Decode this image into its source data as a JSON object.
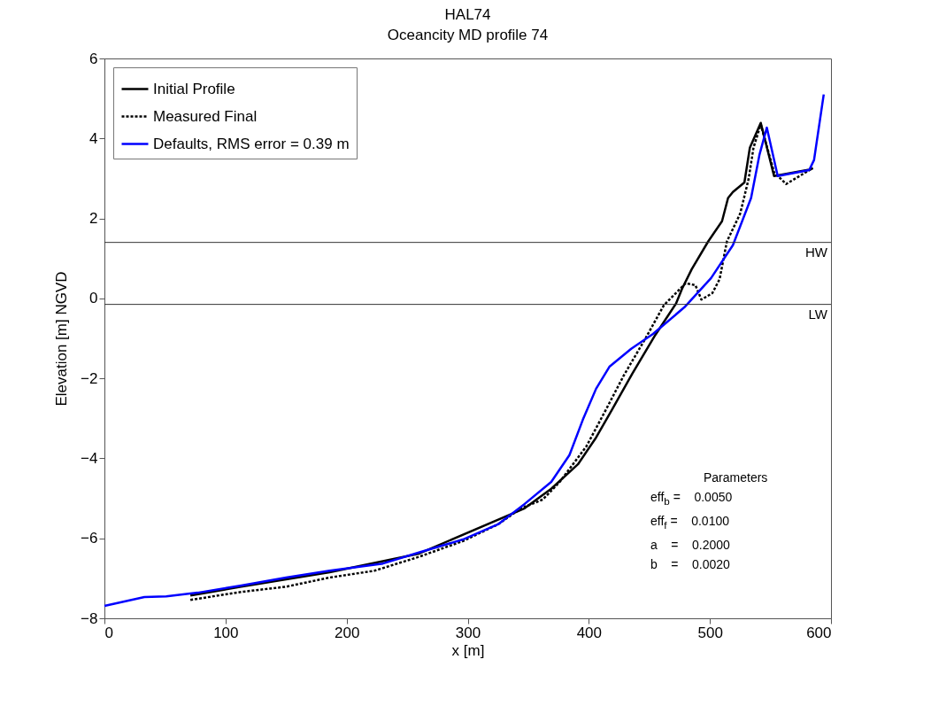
{
  "chart_data": {
    "type": "line",
    "title": "HAL74",
    "subtitle": "Oceancity MD profile 74",
    "xlabel": "x [m]",
    "ylabel": "Elevation [m] NGVD",
    "xlim": [
      0,
      600
    ],
    "xticks": [
      0,
      100,
      200,
      300,
      400,
      500,
      600
    ],
    "ylim": [
      -8,
      6
    ],
    "yticks": [
      -8,
      -6,
      -4,
      -2,
      0,
      2,
      4,
      6
    ],
    "grid": false,
    "legend": "top left",
    "marker": "none",
    "series": [
      {
        "name": "Initial Profile",
        "color": "#000000",
        "line_style": "solid",
        "x": [
          71,
          113,
          186,
          259,
          347,
          369,
          391,
          406,
          419,
          436,
          455,
          472,
          477,
          485,
          498.5,
          510,
          515,
          519,
          528.5,
          533,
          542,
          553,
          582,
          585
        ],
        "values": [
          -7.43,
          -7.21,
          -6.85,
          -6.39,
          -5.25,
          -4.76,
          -4.15,
          -3.48,
          -2.79,
          -1.88,
          -0.91,
          -0.13,
          0.24,
          0.73,
          1.42,
          1.93,
          2.51,
          2.66,
          2.9,
          3.77,
          4.39,
          3.06,
          3.22,
          3.25
        ]
      },
      {
        "name": "Measured Final",
        "color": "#000000",
        "line_style": "dotted",
        "x": [
          71,
          113,
          150,
          186,
          223,
          259,
          296,
          325,
          344,
          362,
          376,
          398,
          414,
          429,
          447,
          462,
          480,
          488,
          493,
          502,
          508,
          514,
          525,
          532,
          536,
          542,
          553,
          563,
          585
        ],
        "values": [
          -7.54,
          -7.34,
          -7.21,
          -6.98,
          -6.81,
          -6.47,
          -6.07,
          -5.65,
          -5.25,
          -5.03,
          -4.59,
          -3.7,
          -2.79,
          -1.92,
          -0.99,
          -0.17,
          0.38,
          0.33,
          -0.03,
          0.13,
          0.48,
          1.42,
          2.12,
          2.99,
          3.77,
          4.35,
          3.15,
          2.86,
          3.26
        ]
      },
      {
        "name": "Defaults, RMS error = 0.39 m",
        "color": "#0000ff",
        "line_style": "solid",
        "x": [
          0,
          33,
          51,
          77,
          113,
          150,
          186,
          230,
          259,
          296,
          325,
          347,
          369,
          384,
          395,
          406,
          417,
          435,
          453,
          479,
          501,
          519,
          534,
          541,
          547,
          556,
          582,
          586,
          594
        ],
        "values": [
          -7.69,
          -7.47,
          -7.45,
          -7.36,
          -7.18,
          -6.98,
          -6.81,
          -6.63,
          -6.36,
          -6.03,
          -5.65,
          -5.14,
          -4.59,
          -3.92,
          -3.04,
          -2.26,
          -1.71,
          -1.26,
          -0.89,
          -0.22,
          0.51,
          1.33,
          2.51,
          3.6,
          4.27,
          3.06,
          3.21,
          3.46,
          5.1
        ]
      }
    ],
    "ref_lines": [
      {
        "axis": "y",
        "value": 1.4,
        "label": "HW",
        "color": "#333333"
      },
      {
        "axis": "y",
        "value": -0.15,
        "label": "LW",
        "color": "#333333"
      }
    ],
    "annotations": [
      "Parameters",
      "eff$_{b}$ =    0.0050",
      "eff$_{f}$ =    0.0100",
      "a    =    0.2000",
      "b    =    0.0020"
    ]
  }
}
